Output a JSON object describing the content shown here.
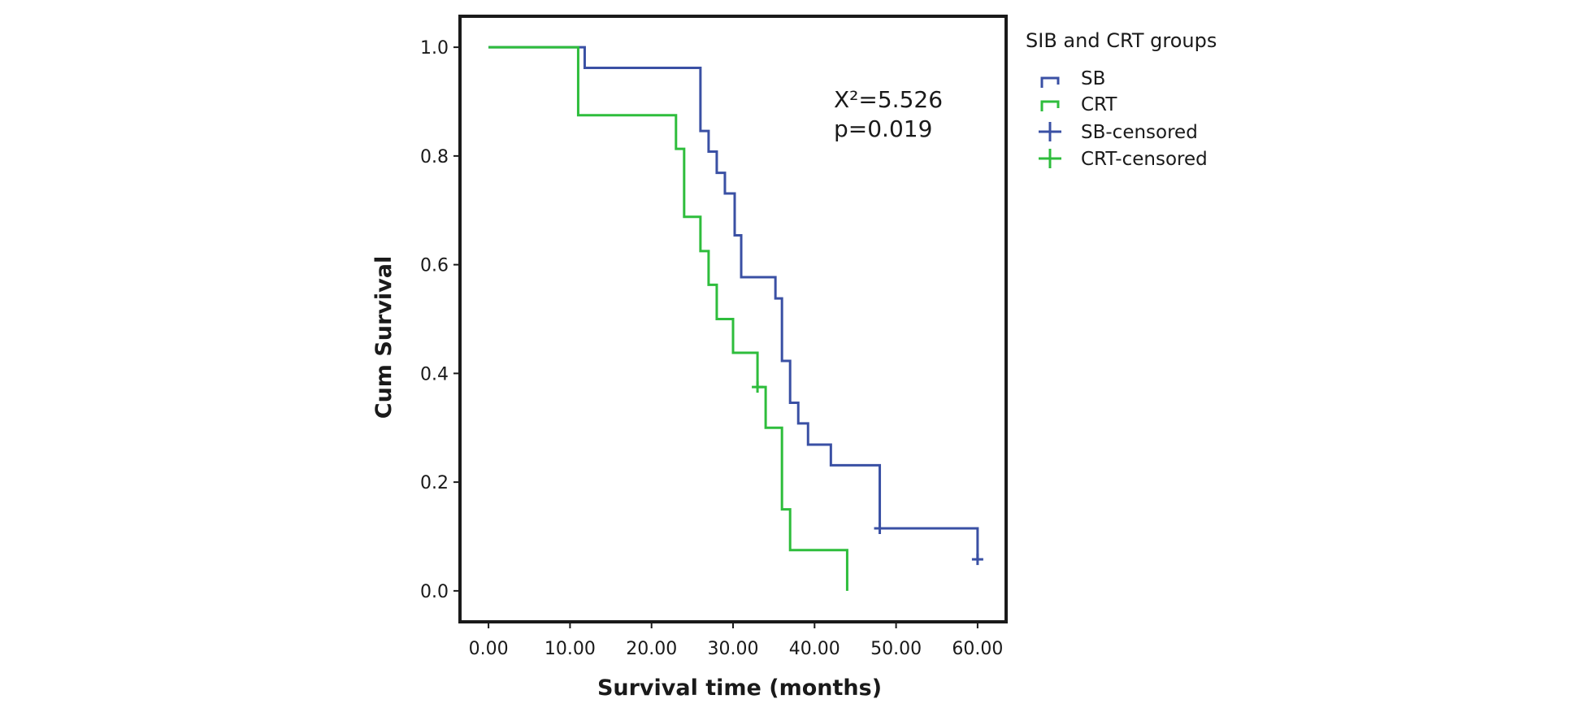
{
  "chart_data": {
    "type": "line",
    "xlabel": "Survival time (months)",
    "ylabel": "Cum Survival",
    "xlim": [
      -3.5,
      63.5
    ],
    "ylim": [
      -0.057,
      1.057
    ],
    "x_ticks": [
      "0.00",
      "10.00",
      "20.00",
      "30.00",
      "40.00",
      "50.00",
      "60.00"
    ],
    "x_tick_values": [
      0,
      10,
      20,
      30,
      40,
      50,
      60
    ],
    "y_ticks": [
      "0.0",
      "0.2",
      "0.4",
      "0.6",
      "0.8",
      "1.0"
    ],
    "y_tick_values": [
      0,
      0.2,
      0.4,
      0.6,
      0.8,
      1.0
    ],
    "annotation": {
      "chi": "X²=5.526",
      "p": "p=0.019"
    },
    "legend": {
      "title": "SIB and CRT groups",
      "position": "right",
      "entries": [
        "SB",
        "CRT",
        "SB-censored",
        "CRT-censored"
      ]
    },
    "series": [
      {
        "name": "SB",
        "color": "#3a50a4",
        "steps": [
          [
            0,
            1.0
          ],
          [
            11.8,
            0.962
          ],
          [
            26.0,
            0.846
          ],
          [
            27.0,
            0.808
          ],
          [
            28.0,
            0.769
          ],
          [
            29.0,
            0.731
          ],
          [
            30.2,
            0.654
          ],
          [
            31.0,
            0.577
          ],
          [
            35.2,
            0.538
          ],
          [
            36.0,
            0.423
          ],
          [
            37.0,
            0.346
          ],
          [
            38.0,
            0.308
          ],
          [
            39.2,
            0.269
          ],
          [
            42.0,
            0.231
          ],
          [
            48.0,
            0.115
          ],
          [
            60.0,
            0.058
          ]
        ],
        "censored": [
          [
            48.0,
            0.115
          ],
          [
            60.0,
            0.058
          ]
        ]
      },
      {
        "name": "CRT",
        "color": "#2ebd3c",
        "steps": [
          [
            0,
            1.0
          ],
          [
            11.0,
            0.875
          ],
          [
            23.0,
            0.813
          ],
          [
            24.0,
            0.688
          ],
          [
            26.0,
            0.625
          ],
          [
            27.0,
            0.563
          ],
          [
            28.0,
            0.5
          ],
          [
            30.0,
            0.438
          ],
          [
            33.0,
            0.375
          ],
          [
            34.0,
            0.3
          ],
          [
            36.0,
            0.15
          ],
          [
            37.0,
            0.075
          ],
          [
            44.0,
            0.0
          ]
        ],
        "censored": [
          [
            33.0,
            0.375
          ]
        ]
      }
    ]
  }
}
